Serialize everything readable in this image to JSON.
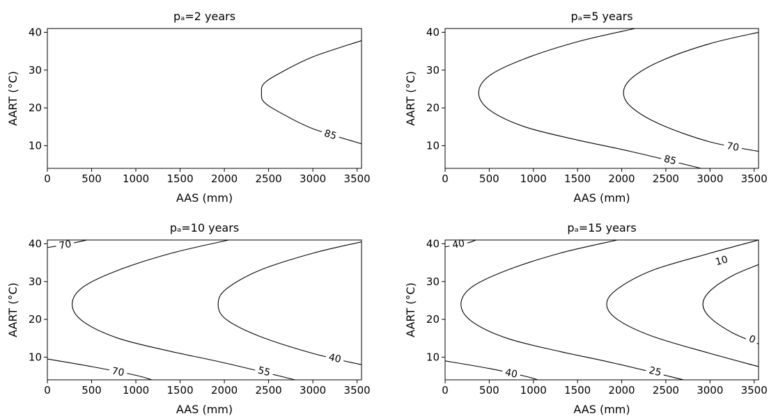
{
  "chart_data": [
    {
      "type": "contour",
      "title": "pₐ=2 years",
      "xlabel": "AAS (mm)",
      "ylabel": "AART (°C)",
      "xlim": [
        0,
        3550
      ],
      "ylim": [
        4,
        41
      ],
      "xticks": [
        0,
        500,
        1000,
        1500,
        2000,
        2500,
        3000,
        3500
      ],
      "yticks": [
        10,
        20,
        30,
        40
      ],
      "grid": false,
      "contours": [
        {
          "level": "85",
          "points": [
            [
              3550,
              37.8
            ],
            [
              3000,
              33.5
            ],
            [
              2650,
              29.5
            ],
            [
              2450,
              26.5
            ],
            [
              2420,
              24.0
            ],
            [
              2450,
              21.5
            ],
            [
              2650,
              18.5
            ],
            [
              3000,
              14.5
            ],
            [
              3550,
              10.5
            ]
          ],
          "label_at": [
            3200,
            13
          ]
        }
      ]
    },
    {
      "type": "contour",
      "title": "pₐ=5 years",
      "xlabel": "AAS (mm)",
      "ylabel": "AART (°C)",
      "xlim": [
        0,
        3550
      ],
      "ylim": [
        4,
        41
      ],
      "xticks": [
        0,
        500,
        1000,
        1500,
        2000,
        2500,
        3000,
        3500
      ],
      "yticks": [
        10,
        20,
        30,
        40
      ],
      "grid": false,
      "contours": [
        {
          "level": "85",
          "points": [
            [
              2150,
              41
            ],
            [
              1500,
              37.5
            ],
            [
              900,
              33.0
            ],
            [
              500,
              28.5
            ],
            [
              380,
              24.0
            ],
            [
              500,
              19.5
            ],
            [
              900,
              15.0
            ],
            [
              1500,
              11.5
            ],
            [
              2100,
              8.5
            ],
            [
              2900,
              4.0
            ]
          ],
          "label_at": [
            2550,
            6.3
          ]
        },
        {
          "level": "70",
          "points": [
            [
              3550,
              40.0
            ],
            [
              3000,
              37.0
            ],
            [
              2450,
              32.5
            ],
            [
              2120,
              28.0
            ],
            [
              2020,
              24.0
            ],
            [
              2120,
              20.0
            ],
            [
              2450,
              15.5
            ],
            [
              3000,
              11.0
            ],
            [
              3550,
              8.5
            ]
          ],
          "label_at": [
            3260,
            9.8
          ]
        }
      ]
    },
    {
      "type": "contour",
      "title": "pₐ=10 years",
      "xlabel": "AAS (mm)",
      "ylabel": "AART (°C)",
      "xlim": [
        0,
        3550
      ],
      "ylim": [
        4,
        41
      ],
      "xticks": [
        0,
        500,
        1000,
        1500,
        2000,
        2500,
        3000,
        3500
      ],
      "yticks": [
        10,
        20,
        30,
        40
      ],
      "grid": false,
      "contours": [
        {
          "level": "70",
          "points": [
            [
              0,
              39.0
            ],
            [
              250,
              40.0
            ],
            [
              450,
              41.0
            ]
          ],
          "label_at": [
            200,
            39.8
          ]
        },
        {
          "level": "70",
          "points": [
            [
              0,
              9.5
            ],
            [
              500,
              7.5
            ],
            [
              1000,
              5.2
            ],
            [
              1180,
              4.0
            ]
          ],
          "label_at": [
            800,
            6.2
          ]
        },
        {
          "level": "55",
          "points": [
            [
              2050,
              41
            ],
            [
              1400,
              37.5
            ],
            [
              800,
              33.0
            ],
            [
              400,
              28.5
            ],
            [
              280,
              24.0
            ],
            [
              400,
              19.5
            ],
            [
              800,
              15.0
            ],
            [
              1400,
              11.5
            ],
            [
              2000,
              8.5
            ],
            [
              2800,
              4.0
            ]
          ],
          "label_at": [
            2450,
            6.3
          ]
        },
        {
          "level": "40",
          "points": [
            [
              3550,
              40.5
            ],
            [
              3000,
              37.5
            ],
            [
              2400,
              33.0
            ],
            [
              2020,
              28.0
            ],
            [
              1930,
              24.0
            ],
            [
              2020,
              20.0
            ],
            [
              2400,
              15.5
            ],
            [
              3000,
              11.0
            ],
            [
              3550,
              8.0
            ]
          ],
          "label_at": [
            3250,
            9.8
          ]
        }
      ]
    },
    {
      "type": "contour",
      "title": "pₐ=15 years",
      "xlabel": "AAS (mm)",
      "ylabel": "AART (°C)",
      "xlim": [
        0,
        3550
      ],
      "ylim": [
        4,
        41
      ],
      "xticks": [
        0,
        500,
        1000,
        1500,
        2000,
        2500,
        3000,
        3500
      ],
      "yticks": [
        10,
        20,
        30,
        40
      ],
      "grid": false,
      "contours": [
        {
          "level": "40",
          "points": [
            [
              0,
              39.2
            ],
            [
              250,
              40.2
            ],
            [
              350,
              41.0
            ]
          ],
          "label_at": [
            150,
            40.0
          ]
        },
        {
          "level": "40",
          "points": [
            [
              0,
              9.0
            ],
            [
              500,
              7.0
            ],
            [
              900,
              5.0
            ],
            [
              1050,
              4.0
            ]
          ],
          "label_at": [
            750,
            5.8
          ]
        },
        {
          "level": "25",
          "points": [
            [
              1950,
              41
            ],
            [
              1300,
              37.5
            ],
            [
              700,
              33.0
            ],
            [
              300,
              28.5
            ],
            [
              180,
              24.0
            ],
            [
              300,
              19.5
            ],
            [
              700,
              15.0
            ],
            [
              1300,
              11.5
            ],
            [
              1900,
              8.5
            ],
            [
              2700,
              4.0
            ]
          ],
          "label_at": [
            2380,
            6.3
          ]
        },
        {
          "level": "10",
          "points": [
            [
              3550,
              41.0
            ],
            [
              3000,
              37.5
            ],
            [
              2350,
              33.0
            ],
            [
              1950,
              28.0
            ],
            [
              1830,
              24.0
            ],
            [
              1950,
              20.0
            ],
            [
              2350,
              15.5
            ],
            [
              3000,
              11.0
            ],
            [
              3550,
              7.5
            ]
          ],
          "label_at": [
            3130,
            35.6
          ]
        },
        {
          "level": "0",
          "points": [
            [
              3550,
              34.5
            ],
            [
              3250,
              31.5
            ],
            [
              3000,
              27.5
            ],
            [
              2920,
              24.0
            ],
            [
              3000,
              20.5
            ],
            [
              3250,
              16.5
            ],
            [
              3550,
              13.5
            ]
          ],
          "label_at": [
            3480,
            14.8
          ]
        }
      ]
    }
  ]
}
